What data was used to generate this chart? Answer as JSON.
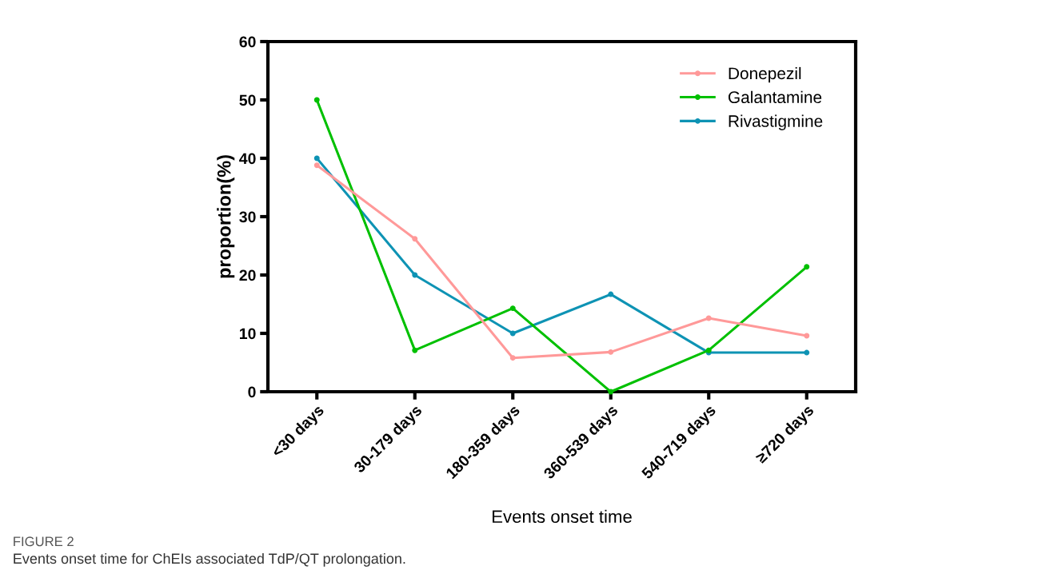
{
  "chart_data": {
    "type": "line",
    "xlabel": "Events onset time",
    "ylabel": "proportion(%)",
    "categories": [
      "<30 days",
      "30-179 days",
      "180-359 days",
      "360-539 days",
      "540-719 days",
      "≥720 days"
    ],
    "series": [
      {
        "name": "Donepezil",
        "color": "#ff9999",
        "values": [
          38.8,
          26.2,
          5.8,
          6.8,
          12.6,
          9.6
        ]
      },
      {
        "name": "Galantamine",
        "color": "#00c000",
        "values": [
          50,
          7.1,
          14.3,
          0,
          7.1,
          21.4
        ]
      },
      {
        "name": "Rivastigmine",
        "color": "#0e93b4",
        "values": [
          40,
          20,
          10,
          16.7,
          6.7,
          6.7
        ]
      }
    ],
    "ylim": [
      0,
      60
    ],
    "yticks": [
      0,
      10,
      20,
      30,
      40,
      50,
      60
    ],
    "grid": false,
    "legend": "top right",
    "marker": "circle",
    "line_style": "solid",
    "annotations": [
      "FIGURE 2",
      "Events onset time for ChEIs associated TdP/QT prolongation."
    ]
  }
}
